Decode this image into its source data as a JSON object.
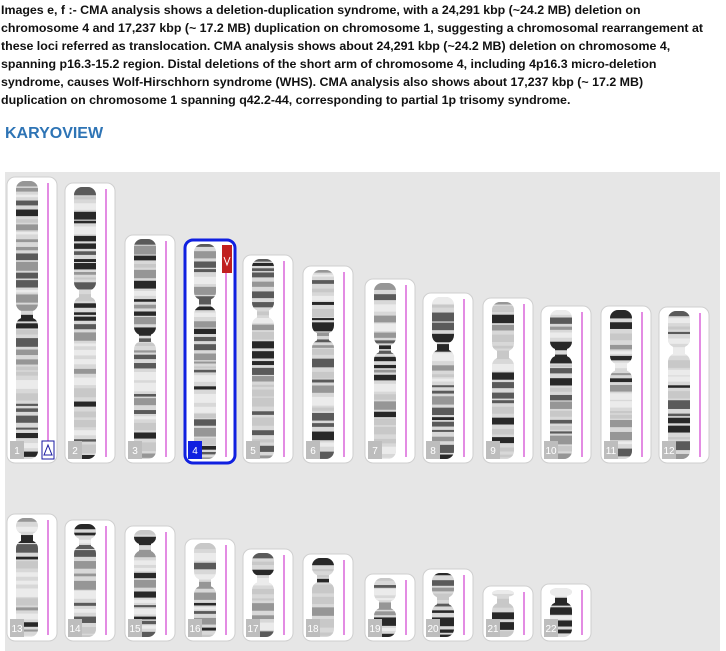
{
  "caption": [
    "Images e, f  :- CMA analysis shows a deletion-duplication syndrome, with a 24,291 kbp (~24.2 MB) deletion on",
    "chromosome 4 and 17,237 kbp (~ 17.2 MB) duplication on chromosome 1, suggesting a chromosomal rearrangement at",
    "these loci referred as translocation. CMA analysis shows about 24,291 kbp (~24.2 MB) deletion on chromosome 4,",
    "spanning p16.3-15.2 region. Distal deletions of the short arm of chromosome 4, including 4p16.3 micro-deletion",
    "syndrome, causes Wolf-Hirschhorn syndrome (WHS). CMA analysis also  shows about 17,237 kbp (~ 17.2 MB)",
    "duplication on chromosome 1 spanning q42.2-44, corresponding to partial 1p trisomy syndrome."
  ],
  "section_title": "KARYOVIEW",
  "chromosomes": [
    "1",
    "2",
    "3",
    "4",
    "5",
    "6",
    "7",
    "8",
    "9",
    "10",
    "11",
    "12",
    "13",
    "14",
    "15",
    "16",
    "17",
    "18",
    "19",
    "20",
    "21",
    "22"
  ]
}
